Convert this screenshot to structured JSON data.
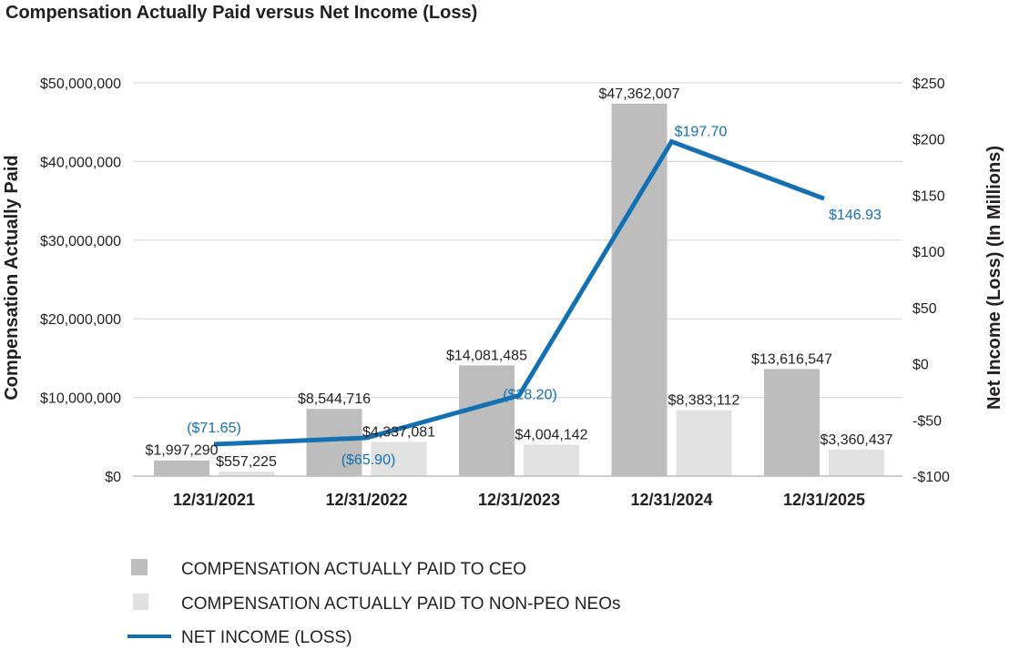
{
  "chart_data": {
    "type": "bar",
    "title": "Compensation Actually Paid versus Net Income (Loss)",
    "xlabel": "",
    "ylabel": "Compensation Actually Paid",
    "y2label": "Net Income (Loss) (In Millions)",
    "categories": [
      "12/31/2021",
      "12/31/2022",
      "12/31/2023",
      "12/31/2024",
      "12/31/2025"
    ],
    "ylim": [
      0,
      50000000
    ],
    "y2lim": [
      -100,
      250
    ],
    "yticks": [
      {
        "value": 0,
        "label": "$0"
      },
      {
        "value": 10000000,
        "label": "$10,000,000"
      },
      {
        "value": 20000000,
        "label": "$20,000,000"
      },
      {
        "value": 30000000,
        "label": "$30,000,000"
      },
      {
        "value": 40000000,
        "label": "$40,000,000"
      },
      {
        "value": 50000000,
        "label": "$50,000,000"
      }
    ],
    "y2ticks": [
      {
        "value": -100,
        "label": "-$100"
      },
      {
        "value": -50,
        "label": "-$50"
      },
      {
        "value": 0,
        "label": "$0"
      },
      {
        "value": 50,
        "label": "$50"
      },
      {
        "value": 100,
        "label": "$100"
      },
      {
        "value": 150,
        "label": "$150"
      },
      {
        "value": 200,
        "label": "$200"
      },
      {
        "value": 250,
        "label": "$250"
      }
    ],
    "grid": true,
    "legend_position": "bottom-left",
    "series": [
      {
        "name": "COMPENSATION ACTUALLY PAID TO CEO",
        "type": "bar",
        "axis": "left",
        "color": "#bcbdbc",
        "values": [
          1997290,
          8544716,
          14081485,
          47362007,
          13616547
        ],
        "labels": [
          "$1,997,290",
          "$8,544,716",
          "$14,081,485",
          "$47,362,007",
          "$13,616,547"
        ]
      },
      {
        "name": "COMPENSATION ACTUALLY PAID TO NON-PEO NEOs",
        "type": "bar",
        "axis": "left",
        "color": "#e0e1e0",
        "values": [
          557225,
          4337081,
          4004142,
          8383112,
          3360437
        ],
        "labels": [
          "$557,225",
          "$4,337,081",
          "$4,004,142",
          "$8,383,112",
          "$3,360,437"
        ]
      },
      {
        "name": "NET INCOME (LOSS)",
        "type": "line",
        "axis": "right",
        "color": "#1470b3",
        "values": [
          -71.65,
          -65.9,
          -28.2,
          197.7,
          146.93
        ],
        "labels": [
          "($71.65)",
          "($65.90)",
          "($28.20)",
          "$197.70",
          "$146.93"
        ]
      }
    ]
  }
}
